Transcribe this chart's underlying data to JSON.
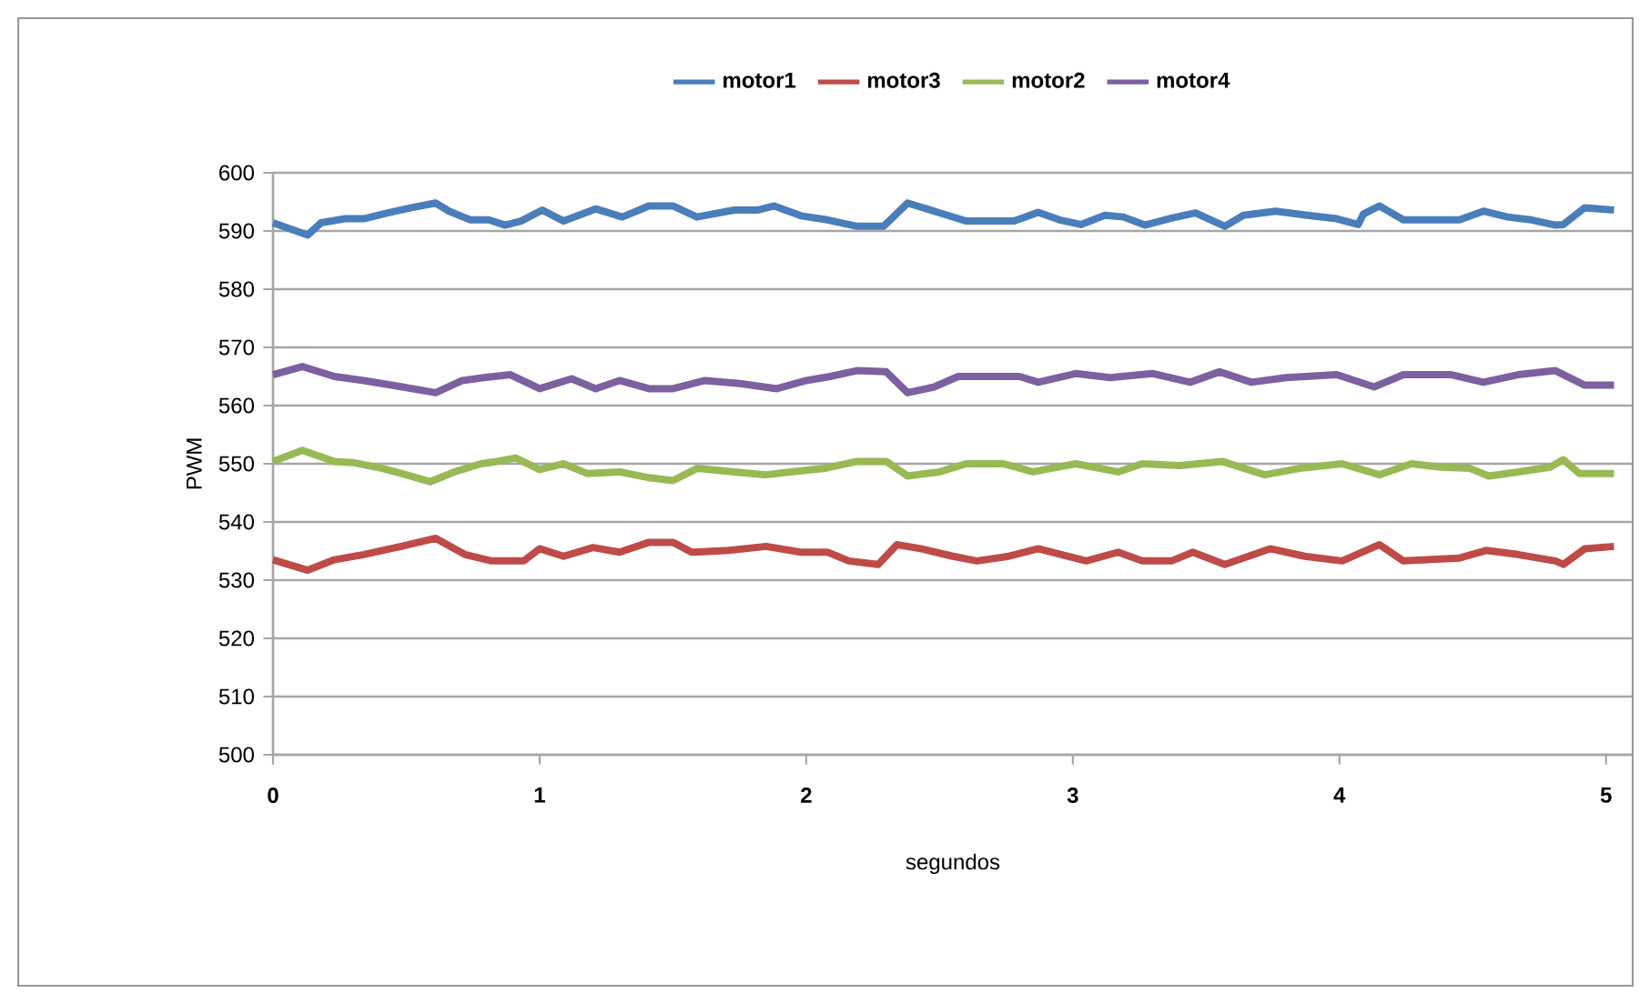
{
  "chart_data": {
    "type": "line",
    "xlabel": "segundos",
    "ylabel": "PWM",
    "xlim": [
      0,
      5.1
    ],
    "ylim": [
      500,
      600
    ],
    "xticks": [
      0,
      1,
      2,
      3,
      4,
      5
    ],
    "yticks": [
      500,
      510,
      520,
      530,
      540,
      550,
      560,
      570,
      580,
      590,
      600
    ],
    "grid": "y",
    "legend": "top",
    "marker": "none",
    "line_style": "solid",
    "series": [
      {
        "name": "motor1",
        "color": "#4a7ebb",
        "x": [
          0,
          0.13,
          0.18,
          0.27,
          0.34,
          0.43,
          0.52,
          0.61,
          0.66,
          0.74,
          0.81,
          0.87,
          0.93,
          1.01,
          1.09,
          1.21,
          1.31,
          1.41,
          1.5,
          1.59,
          1.73,
          1.82,
          1.88,
          1.98,
          2.08,
          2.19,
          2.29,
          2.38,
          2.53,
          2.6,
          2.78,
          2.87,
          2.95,
          3.03,
          3.12,
          3.19,
          3.27,
          3.37,
          3.46,
          3.57,
          3.64,
          3.76,
          3.88,
          3.99,
          4.07,
          4.09,
          4.15,
          4.24,
          4.35,
          4.45,
          4.54,
          4.63,
          4.72,
          4.81,
          4.84,
          4.92,
          5.03
        ],
        "values": [
          591.4,
          589.3,
          591.4,
          592.1,
          592.1,
          593.1,
          594,
          594.8,
          593.4,
          591.9,
          591.9,
          591,
          591.7,
          593.6,
          591.7,
          593.8,
          592.4,
          594.3,
          594.3,
          592.4,
          593.6,
          593.6,
          594.3,
          592.6,
          591.9,
          590.8,
          590.8,
          594.8,
          592.7,
          591.7,
          591.7,
          593.2,
          591.9,
          591.1,
          592.7,
          592.4,
          591,
          592.2,
          593.1,
          590.8,
          592.7,
          593.4,
          592.7,
          592.1,
          591.1,
          592.9,
          594.3,
          591.9,
          591.9,
          591.9,
          593.4,
          592.4,
          591.9,
          591,
          591.1,
          594,
          593.6
        ]
      },
      {
        "name": "motor3",
        "color": "#be4b48",
        "x": [
          0,
          0.13,
          0.23,
          0.34,
          0.48,
          0.61,
          0.72,
          0.82,
          0.94,
          1,
          1.09,
          1.2,
          1.3,
          1.41,
          1.5,
          1.57,
          1.71,
          1.85,
          1.98,
          2.08,
          2.16,
          2.27,
          2.34,
          2.43,
          2.55,
          2.64,
          2.76,
          2.87,
          3.05,
          3.17,
          3.26,
          3.37,
          3.45,
          3.57,
          3.74,
          3.87,
          4.01,
          4.15,
          4.24,
          4.45,
          4.55,
          4.67,
          4.81,
          4.84,
          4.92,
          5.03
        ],
        "values": [
          533.5,
          531.7,
          533.5,
          534.4,
          535.8,
          537.2,
          534.4,
          533.3,
          533.3,
          535.4,
          534.1,
          535.6,
          534.8,
          536.5,
          536.5,
          534.8,
          535.1,
          535.8,
          534.8,
          534.8,
          533.3,
          532.7,
          536.1,
          535.4,
          534.1,
          533.3,
          534.1,
          535.4,
          533.3,
          534.8,
          533.3,
          533.3,
          534.8,
          532.7,
          535.4,
          534.1,
          533.3,
          536.1,
          533.3,
          533.8,
          535.1,
          534.4,
          533.3,
          532.7,
          535.4,
          535.8
        ]
      },
      {
        "name": "motor2",
        "color": "#98b954",
        "x": [
          0,
          0.11,
          0.23,
          0.3,
          0.41,
          0.5,
          0.59,
          0.68,
          0.78,
          0.84,
          0.91,
          1,
          1.09,
          1.18,
          1.3,
          1.41,
          1.5,
          1.59,
          1.73,
          1.85,
          1.94,
          2.07,
          2.19,
          2.3,
          2.38,
          2.5,
          2.6,
          2.74,
          2.85,
          3.01,
          3.17,
          3.26,
          3.4,
          3.56,
          3.72,
          3.85,
          4.01,
          4.15,
          4.27,
          4.38,
          4.49,
          4.56,
          4.67,
          4.79,
          4.84,
          4.9,
          5.03
        ],
        "values": [
          550.4,
          552.3,
          550.4,
          550.2,
          549.2,
          548.1,
          546.9,
          548.6,
          550,
          550.4,
          551,
          549,
          550,
          548.3,
          548.6,
          547.6,
          547.1,
          549.2,
          548.6,
          548.1,
          548.6,
          549.2,
          550.4,
          550.4,
          547.9,
          548.6,
          550,
          550,
          548.6,
          550,
          548.6,
          550,
          549.7,
          550.4,
          548.1,
          549.2,
          550,
          548.1,
          550,
          549.4,
          549.2,
          547.9,
          548.6,
          549.4,
          550.7,
          548.3,
          548.3
        ]
      },
      {
        "name": "motor4",
        "color": "#7d60a0",
        "x": [
          0,
          0.11,
          0.23,
          0.34,
          0.46,
          0.61,
          0.71,
          0.79,
          0.89,
          1,
          1.12,
          1.21,
          1.3,
          1.41,
          1.5,
          1.62,
          1.75,
          1.89,
          2,
          2.09,
          2.19,
          2.3,
          2.38,
          2.48,
          2.57,
          2.8,
          2.87,
          3.01,
          3.14,
          3.3,
          3.44,
          3.55,
          3.67,
          3.8,
          3.99,
          4.13,
          4.24,
          4.42,
          4.54,
          4.67,
          4.81,
          4.92,
          5.03
        ],
        "values": [
          565.3,
          566.7,
          565,
          564.3,
          563.4,
          562.2,
          564.3,
          564.8,
          565.3,
          562.9,
          564.6,
          562.9,
          564.3,
          562.9,
          562.9,
          564.3,
          563.8,
          562.9,
          564.3,
          565,
          566,
          565.8,
          562.2,
          563.2,
          565,
          565,
          564,
          565.5,
          564.8,
          565.5,
          564,
          565.8,
          564,
          564.8,
          565.3,
          563.2,
          565.3,
          565.3,
          564,
          565.3,
          566,
          563.5,
          563.5
        ]
      }
    ]
  }
}
